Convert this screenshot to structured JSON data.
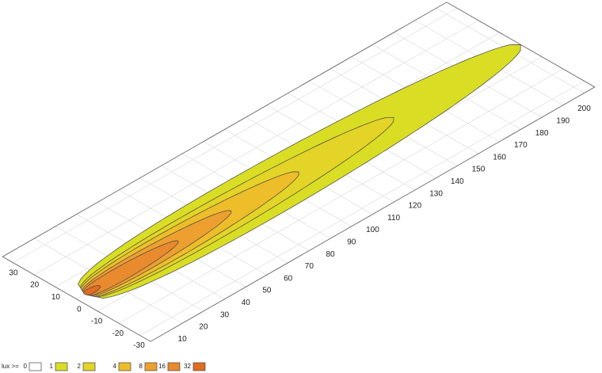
{
  "chart_data": {
    "type": "contour",
    "xlim": [
      -5,
      205
    ],
    "ylim": [
      -35,
      35
    ],
    "xticks": [
      10,
      20,
      30,
      40,
      50,
      60,
      70,
      80,
      90,
      100,
      110,
      120,
      130,
      140,
      150,
      160,
      170,
      180,
      190,
      200
    ],
    "yticks": [
      30,
      20,
      10,
      0,
      -10,
      -20,
      -30
    ],
    "grid": true,
    "legend_title": "lux >=",
    "levels": [
      0,
      1,
      2,
      4,
      8,
      16,
      32
    ],
    "colors": [
      "#ffffff",
      "#d9de25",
      "#e3d427",
      "#eebd2a",
      "#eda030",
      "#e98a2e",
      "#df6d22"
    ],
    "reach": [
      null,
      205,
      145,
      100,
      68,
      43,
      6
    ],
    "half_width": [
      null,
      13,
      9,
      7,
      5,
      3.5,
      1.5
    ]
  }
}
